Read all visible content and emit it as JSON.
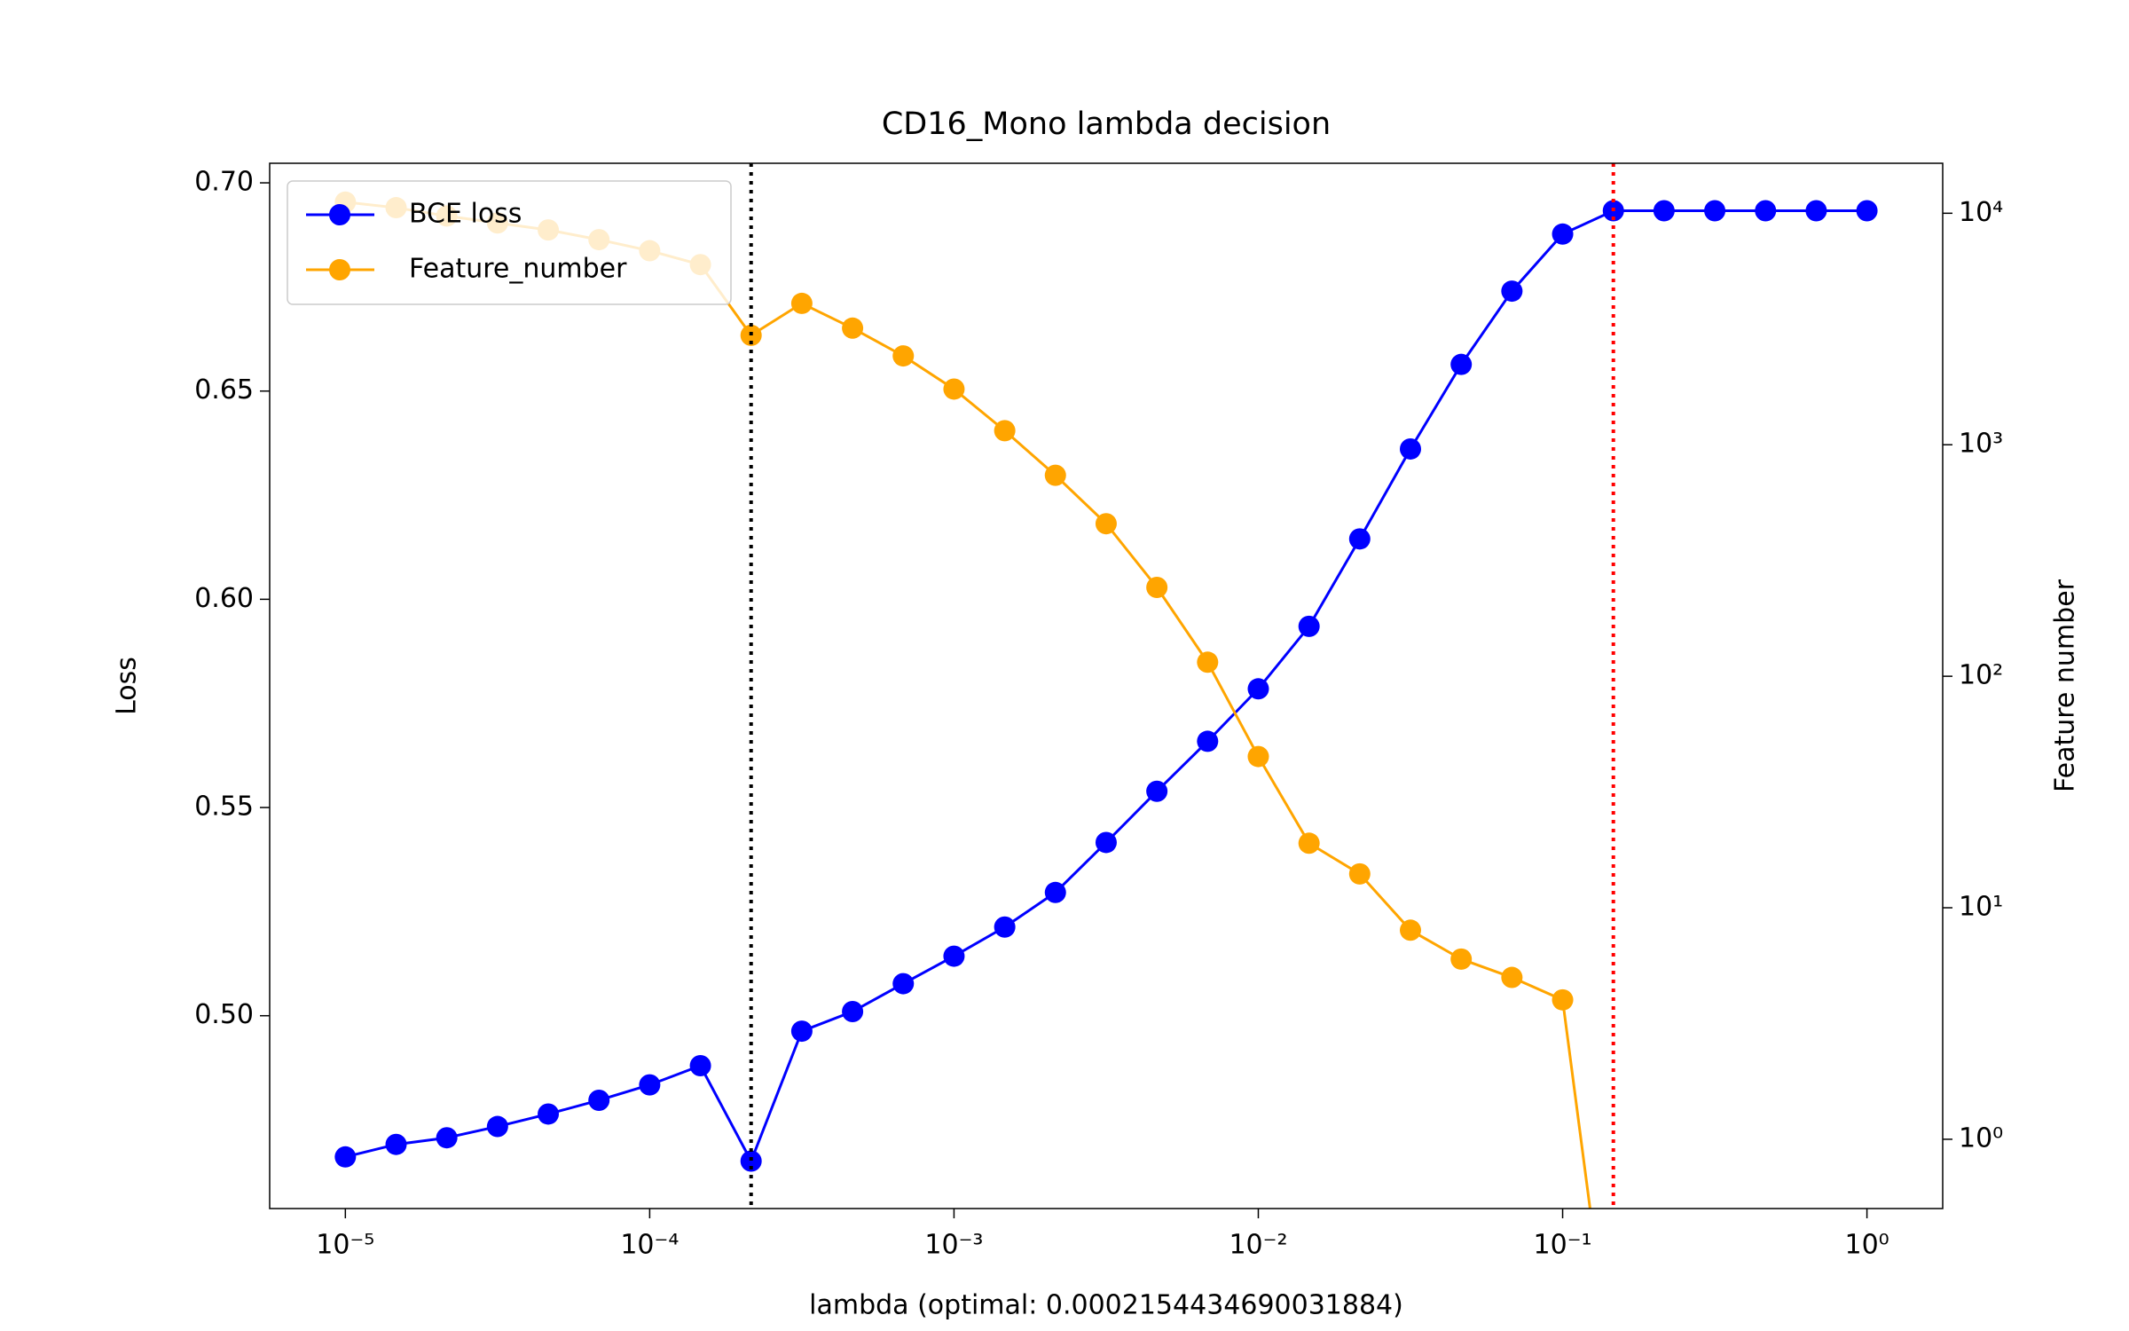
{
  "chart_data": {
    "type": "line",
    "title": "CD16_Mono lambda decision",
    "xlabel": "lambda (optimal: 0.0002154434690031884)",
    "ylabel": "Loss",
    "y2label": "Feature number",
    "xlog": true,
    "y2log": true,
    "legend": "upper left",
    "x": [
      1e-05,
      1.468e-05,
      2.154e-05,
      3.162e-05,
      4.642e-05,
      6.813e-05,
      0.0001,
      0.0001468,
      0.0002154,
      0.0003162,
      0.0004642,
      0.0006813,
      0.001,
      0.001468,
      0.002154,
      0.003162,
      0.004642,
      0.006813,
      0.01,
      0.01468,
      0.02154,
      0.03162,
      0.04642,
      0.06813,
      0.1,
      0.1468,
      0.2154,
      0.3162,
      0.4642,
      0.6813,
      1
    ],
    "series": [
      {
        "name": "BCE loss",
        "color": "#0000ff",
        "axis": "y",
        "values": [
          0.4661,
          0.4691,
          0.4707,
          0.4734,
          0.4764,
          0.4797,
          0.4834,
          0.488,
          0.4651,
          0.4963,
          0.501,
          0.5077,
          0.5143,
          0.5213,
          0.5296,
          0.5416,
          0.5539,
          0.5659,
          0.5785,
          0.5935,
          0.6145,
          0.6361,
          0.6564,
          0.674,
          0.6877,
          0.6933,
          0.6933,
          0.6933,
          0.6933,
          0.6933,
          0.6933
        ]
      },
      {
        "name": "Feature_number",
        "color": "#ffa500",
        "axis": "y2",
        "values": [
          11170,
          10570,
          9730,
          9080,
          8470,
          7690,
          6890,
          6000,
          2970,
          4080,
          3190,
          2420,
          1740,
          1150,
          738,
          456,
          242,
          115,
          45,
          19,
          14,
          8,
          6,
          5,
          4,
          0,
          0,
          0,
          0,
          0,
          0
        ]
      }
    ],
    "vlines": [
      {
        "x": 0.0002154434690031884,
        "color": "#000000"
      },
      {
        "x": 0.1468,
        "color": "#ff0000"
      }
    ],
    "xlim": [
      5.64e-06,
      1.774
    ],
    "xticks": [
      {
        "value": 1e-05,
        "label": "10⁻⁵"
      },
      {
        "value": 0.0001,
        "label": "10⁻⁴"
      },
      {
        "value": 0.001,
        "label": "10⁻³"
      },
      {
        "value": 0.01,
        "label": "10⁻²"
      },
      {
        "value": 0.1,
        "label": "10⁻¹"
      },
      {
        "value": 1,
        "label": "10⁰"
      }
    ],
    "ylim": [
      0.4537,
      0.7047
    ],
    "yticks": [
      {
        "value": 0.5,
        "label": "0.50"
      },
      0.55,
      {
        "value": 0.6,
        "label": "0.60"
      },
      0.65,
      {
        "value": 0.7,
        "label": "0.70"
      }
    ],
    "y2lim": [
      0.502,
      16440
    ],
    "y2ticks": [
      {
        "value": 1,
        "label": "10⁰"
      },
      {
        "value": 10,
        "label": "10¹"
      },
      {
        "value": 100,
        "label": "10²"
      },
      {
        "value": 1000,
        "label": "10³"
      },
      {
        "value": 10000,
        "label": "10⁴"
      }
    ]
  }
}
